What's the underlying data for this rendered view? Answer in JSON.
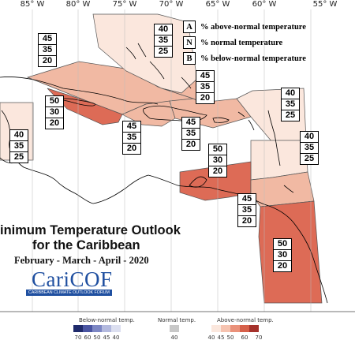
{
  "map": {
    "longitude_labels": [
      "85° W",
      "80° W",
      "75° W",
      "70° W",
      "65° W",
      "60° W",
      "55° W"
    ],
    "land_color": "#ffffff",
    "outline_color": "#000000",
    "regions": [
      {
        "name": "Cuba & Cayman Islands",
        "A": "45",
        "N": "35",
        "B": "20",
        "fill": "#f1b9a3"
      },
      {
        "name": "Jamaica",
        "A": "50",
        "N": "30",
        "B": "20",
        "fill": "#dd6b56"
      },
      {
        "name": "Bahamas",
        "A": "40",
        "N": "35",
        "B": "25",
        "fill": "#fbe7dd"
      },
      {
        "name": "Haiti",
        "A": "45",
        "N": "35",
        "B": "20",
        "fill": "#f1b9a3"
      },
      {
        "name": "Dominican Republic",
        "A": "45",
        "N": "35",
        "B": "20",
        "fill": "#f1b9a3"
      },
      {
        "name": "Turks & Caicos",
        "A": "45",
        "N": "35",
        "B": "20",
        "fill": "#f1b9a3"
      },
      {
        "name": "Northern Leeward Islands",
        "A": "40",
        "N": "35",
        "B": "25",
        "fill": "#fbe7dd"
      },
      {
        "name": "Windward Islands",
        "A": "40",
        "N": "35",
        "B": "25",
        "fill": "#fbe7dd"
      },
      {
        "name": "Belize",
        "A": "40",
        "N": "35",
        "B": "25",
        "fill": "#fbe7dd"
      },
      {
        "name": "Aruba, Bonaire, Curacao",
        "A": "50",
        "N": "30",
        "B": "20",
        "fill": "#dd6b56"
      },
      {
        "name": "Trinidad & Tobago",
        "A": "45",
        "N": "35",
        "B": "20",
        "fill": "#f1b9a3"
      },
      {
        "name": "Guianas",
        "A": "50",
        "N": "30",
        "B": "20",
        "fill": "#dd6b56"
      }
    ]
  },
  "legend": {
    "items": [
      {
        "key": "A",
        "text": "% above-normal temperature"
      },
      {
        "key": "N",
        "text": "% normal temperature"
      },
      {
        "key": "B",
        "text": "% below-normal temperature"
      }
    ]
  },
  "title": {
    "line1": "inimum Temperature Outlook",
    "line2": "for the Caribbean",
    "dates": "February - March - April - 2020"
  },
  "logo": {
    "wordmark": "CariCOF",
    "subtitle": "CARIBBEAN CLIMATE OUTLOOK FORUM"
  },
  "colorbar": {
    "below": {
      "label": "Below-normal temp.",
      "ticks": [
        "70",
        "60",
        "50",
        "45",
        "40"
      ],
      "colors": [
        "#1f2a6b",
        "#4a55a2",
        "#7d87c4",
        "#b3b9de",
        "#dcdff0"
      ]
    },
    "normal": {
      "label": "Normal temp.",
      "ticks": [
        "40"
      ],
      "colors": [
        "#c8c8c8"
      ]
    },
    "above": {
      "label": "Above-normal temp.",
      "ticks": [
        "40",
        "45",
        "50",
        "60",
        "70"
      ],
      "colors": [
        "#fbe7dd",
        "#f6c3b0",
        "#ea917a",
        "#d6604a",
        "#a5312b"
      ]
    }
  }
}
